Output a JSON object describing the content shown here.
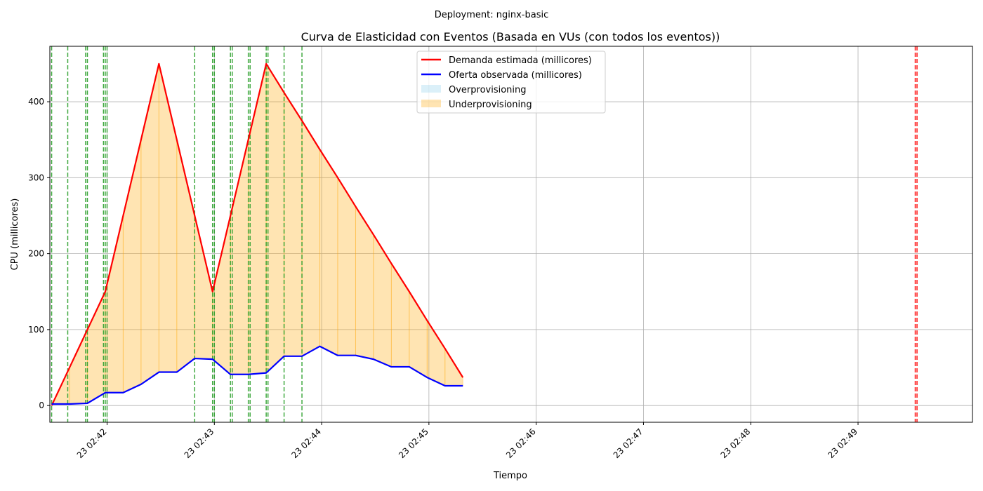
{
  "chart_data": {
    "type": "line",
    "suptitle": "Deployment: nginx-basic",
    "title": "Curva de Elasticidad con Eventos (Basada en VUs (con todos los eventos))",
    "xlabel": "Tiempo",
    "ylabel": "CPU (millicores)",
    "xlim": [
      "02:41:28",
      "02:50:04"
    ],
    "ylim": [
      -22,
      473
    ],
    "grid": true,
    "legend_position": "top-center",
    "x_tick_labels": [
      "23 02:42",
      "23 02:43",
      "23 02:44",
      "23 02:45",
      "23 02:46",
      "23 02:47",
      "23 02:48",
      "23 02:49"
    ],
    "x_ticks": [
      "02:42:00",
      "02:43:00",
      "02:44:00",
      "02:45:00",
      "02:46:00",
      "02:47:00",
      "02:48:00",
      "02:49:00"
    ],
    "y_ticks": [
      0,
      100,
      200,
      300,
      400
    ],
    "x": [
      "02:41:29",
      "02:41:39",
      "02:41:49",
      "02:41:59",
      "02:42:09",
      "02:42:19",
      "02:42:29",
      "02:42:39",
      "02:42:49",
      "02:42:59",
      "02:43:09",
      "02:43:19",
      "02:43:29",
      "02:43:39",
      "02:43:49",
      "02:43:59",
      "02:44:09",
      "02:44:19",
      "02:44:29",
      "02:44:39",
      "02:44:49",
      "02:44:59",
      "02:45:09",
      "02:45:19"
    ],
    "series": [
      {
        "name": "Demanda estimada (millicores)",
        "color": "#ff0000",
        "values": [
          0,
          50,
          100,
          150,
          250,
          350,
          450,
          350,
          250,
          150,
          250,
          350,
          450,
          412,
          375,
          337,
          300,
          262,
          225,
          187,
          150,
          112,
          75,
          37
        ]
      },
      {
        "name": "Oferta observada (millicores)",
        "color": "#0000ff",
        "values": [
          2,
          2,
          3,
          17,
          17,
          28,
          44,
          44,
          62,
          61,
          41,
          41,
          43,
          65,
          65,
          78,
          66,
          66,
          61,
          51,
          51,
          37,
          26,
          26
        ]
      }
    ],
    "fills": [
      {
        "name": "Overprovisioning",
        "color": "#87ceeb"
      },
      {
        "name": "Underprovisioning",
        "color": "#ffa500"
      }
    ],
    "events": {
      "green": [
        "02:41:29",
        "02:41:38",
        "02:41:48",
        "02:41:49",
        "02:41:58",
        "02:41:59",
        "02:42:00",
        "02:42:49",
        "02:42:59",
        "02:43:00",
        "02:43:09",
        "02:43:10",
        "02:43:19",
        "02:43:20",
        "02:43:29",
        "02:43:30",
        "02:43:39",
        "02:43:49"
      ],
      "red": [
        "02:49:32",
        "02:49:33"
      ],
      "green_color": "#2ca02c",
      "red_color": "#ff0000"
    }
  }
}
